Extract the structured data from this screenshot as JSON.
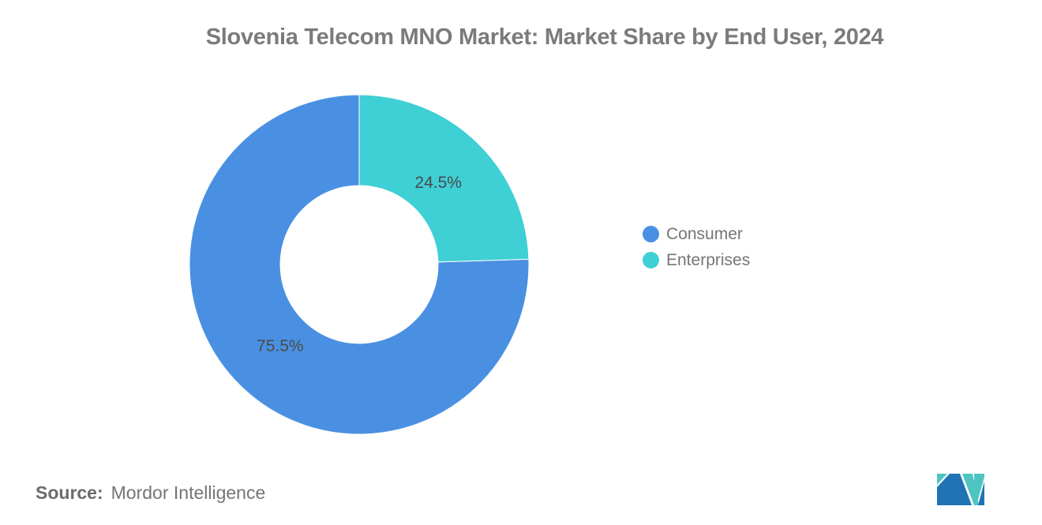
{
  "title": "Slovenia Telecom MNO Market: Market Share by End User, 2024",
  "source": {
    "label": "Source:",
    "value": "Mordor Intelligence"
  },
  "colors": {
    "background": "#FFFFFF",
    "consumer": "#4A90E2",
    "enterprises": "#3ED0D5",
    "title_text": "#7B7B7B",
    "slice_label_text": "#4A4A4A",
    "legend_text": "#757575",
    "source_text": "#757575",
    "source_label_text": "#6B6B6B",
    "logo_blue": "#2173B4",
    "logo_teal": "#4EC5C2"
  },
  "chart_data": {
    "type": "pie",
    "donut": true,
    "title": "Slovenia Telecom MNO Market: Market Share by End User, 2024",
    "categories": [
      "Consumer",
      "Enterprises"
    ],
    "values": [
      75.5,
      24.5
    ],
    "slices": [
      {
        "name": "Consumer",
        "value": 75.5,
        "label": "75.5%",
        "color": "#4A90E2"
      },
      {
        "name": "Enterprises",
        "value": 24.5,
        "label": "24.5%",
        "color": "#3ED0D5"
      }
    ],
    "start_angle": "12 o'clock",
    "order_from_top_clockwise": [
      "Enterprises",
      "Consumer"
    ],
    "inner_radius_ratio": 0.465,
    "legend_position": "right",
    "grid": false
  }
}
